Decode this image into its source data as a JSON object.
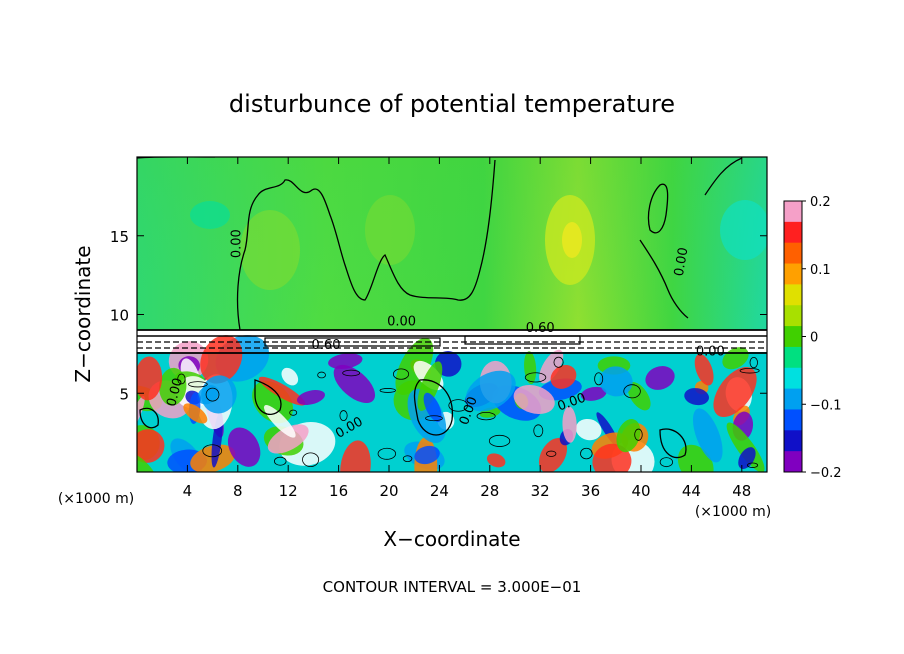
{
  "chart_data": {
    "type": "heatmap",
    "title": "disturbunce of potential temperature",
    "xlabel": "X−coordinate",
    "ylabel": "Z−coordinate",
    "x_unit": "(×1000 m)",
    "x_unit_right": "(×1000 m)",
    "footer": "CONTOUR INTERVAL = 3.000E−01",
    "xlim": [
      0,
      50
    ],
    "ylim": [
      0,
      20
    ],
    "x_ticks": [
      4,
      8,
      12,
      16,
      20,
      24,
      28,
      32,
      36,
      40,
      44,
      48
    ],
    "x_tick_labels": [
      "4",
      "8",
      "12",
      "16",
      "20",
      "24",
      "28",
      "32",
      "36",
      "40",
      "44",
      "48"
    ],
    "y_ticks": [
      5,
      10,
      15
    ],
    "y_tick_labels": [
      "5",
      "10",
      "15"
    ],
    "colorbar": {
      "range": [
        -0.2,
        0.2
      ],
      "ticks": [
        0.2,
        0.1,
        0,
        -0.1,
        -0.2
      ],
      "tick_labels": [
        "0.2",
        "0.1",
        "0",
        "−0.1",
        "−0.2"
      ],
      "colors": [
        "#f5a0c8",
        "#ff2020",
        "#ff6000",
        "#ffa000",
        "#e0e000",
        "#a8e000",
        "#40d000",
        "#00e080",
        "#00e0e0",
        "#00a0f0",
        "#0050ff",
        "#1010c8",
        "#8000c0"
      ]
    },
    "contour_labels": [
      {
        "text": "0.00",
        "x": 8.2,
        "z": 14.5,
        "rot": -90
      },
      {
        "text": "0.00",
        "x": 21.0,
        "z": 9.3,
        "rot": 0
      },
      {
        "text": "0.60",
        "x": 32.0,
        "z": 8.9,
        "rot": 0
      },
      {
        "text": "0.00",
        "x": 43.5,
        "z": 13.3,
        "rot": -80
      },
      {
        "text": "0.60",
        "x": 15.0,
        "z": 7.8,
        "rot": 0
      },
      {
        "text": "0.00",
        "x": 45.5,
        "z": 7.4,
        "rot": 0
      },
      {
        "text": "0.00",
        "x": 3.3,
        "z": 5.0,
        "rot": -75
      },
      {
        "text": "0.00",
        "x": 17.0,
        "z": 2.6,
        "rot": -30
      },
      {
        "text": "0.00",
        "x": 26.6,
        "z": 3.8,
        "rot": -70
      },
      {
        "text": "0.00",
        "x": 34.6,
        "z": 4.2,
        "rot": -20
      }
    ],
    "grid": false,
    "colorbar_position": "right"
  }
}
